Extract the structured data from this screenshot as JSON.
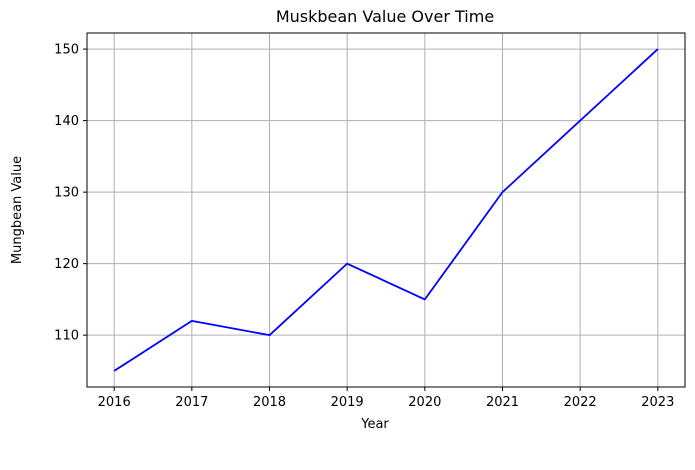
{
  "chart_data": {
    "type": "line",
    "title": "Muskbean Value Over Time",
    "xlabel": "Year",
    "ylabel": "Mungbean Value",
    "x": [
      2016,
      2017,
      2018,
      2019,
      2020,
      2021,
      2022,
      2023
    ],
    "series": [
      {
        "name": "Mungbean Value",
        "values": [
          105,
          112,
          110,
          120,
          115,
          130,
          140,
          150
        ],
        "color": "#0000ff"
      }
    ],
    "xlim": [
      2015.65,
      2023.35
    ],
    "ylim": [
      102.75,
      152.25
    ],
    "x_ticks": [
      "2016",
      "2017",
      "2018",
      "2019",
      "2020",
      "2021",
      "2022",
      "2023"
    ],
    "y_ticks": [
      "110",
      "120",
      "130",
      "140",
      "150"
    ],
    "grid": true,
    "grid_color": "#b0b0b0",
    "legend": "none"
  }
}
